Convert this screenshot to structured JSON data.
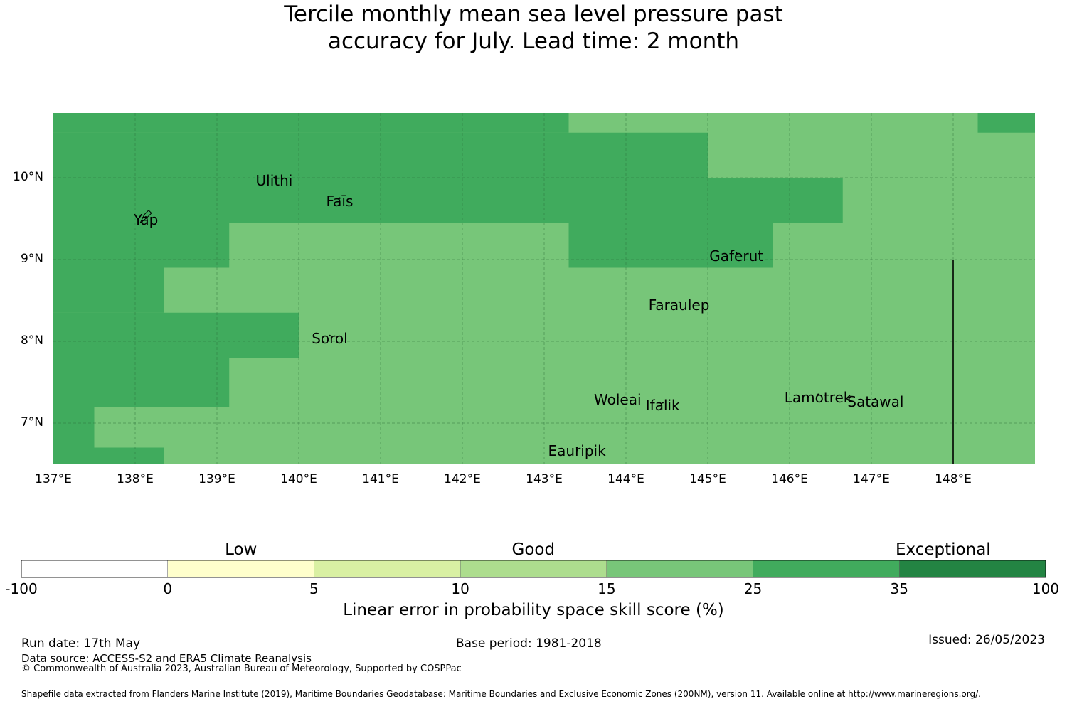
{
  "title": {
    "line1": "Tercile monthly mean sea level pressure past",
    "line2": "accuracy for July. Lead time: 2 month"
  },
  "map": {
    "lon_range": [
      137,
      149
    ],
    "lat_range": [
      6.5,
      10.8
    ],
    "lat_ticks": [
      "10°N",
      "9°N",
      "8°N",
      "7°N"
    ],
    "lon_ticks": [
      "137°E",
      "138°E",
      "139°E",
      "140°E",
      "141°E",
      "142°E",
      "143°E",
      "144°E",
      "145°E",
      "146°E",
      "147°E",
      "148°E"
    ],
    "grid_color": "#2b6e3a",
    "base_color": "#77c679",
    "dark_color": "#40ab5d",
    "dark_regions": [
      {
        "lon": [
          137.0,
          143.3
        ],
        "lat": [
          10.55,
          10.8
        ]
      },
      {
        "lon": [
          148.3,
          149.0
        ],
        "lat": [
          10.55,
          10.8
        ]
      },
      {
        "lon": [
          137.0,
          145.0
        ],
        "lat": [
          9.45,
          10.55
        ]
      },
      {
        "lon": [
          145.0,
          146.65
        ],
        "lat": [
          9.45,
          10.0
        ]
      },
      {
        "lon": [
          137.0,
          139.15
        ],
        "lat": [
          8.9,
          9.45
        ]
      },
      {
        "lon": [
          143.3,
          145.8
        ],
        "lat": [
          8.9,
          9.45
        ]
      },
      {
        "lon": [
          137.0,
          138.35
        ],
        "lat": [
          8.35,
          8.9
        ]
      },
      {
        "lon": [
          137.0,
          140.0
        ],
        "lat": [
          7.8,
          8.35
        ]
      },
      {
        "lon": [
          137.0,
          139.15
        ],
        "lat": [
          7.2,
          7.8
        ]
      },
      {
        "lon": [
          137.0,
          137.5
        ],
        "lat": [
          6.7,
          7.2
        ]
      },
      {
        "lon": [
          137.0,
          138.35
        ],
        "lat": [
          6.5,
          6.7
        ]
      }
    ],
    "boundary_line": {
      "lon": 148.0,
      "lat": [
        6.5,
        9.0
      ]
    },
    "places": [
      {
        "name": "Ulithi",
        "lon": 139.7,
        "lat": 10.0
      },
      {
        "name": "Faīs",
        "lon": 140.5,
        "lat": 9.75
      },
      {
        "name": "Yap",
        "lon": 138.13,
        "lat": 9.52
      },
      {
        "name": "Gaferut",
        "lon": 145.35,
        "lat": 9.08
      },
      {
        "name": "Faraulep",
        "lon": 144.65,
        "lat": 8.48
      },
      {
        "name": "Sorol",
        "lon": 140.38,
        "lat": 8.07
      },
      {
        "name": "Woleai",
        "lon": 143.9,
        "lat": 7.32
      },
      {
        "name": "Ifalik",
        "lon": 144.45,
        "lat": 7.25
      },
      {
        "name": "Lamotrek",
        "lon": 146.35,
        "lat": 7.35
      },
      {
        "name": "Satawal",
        "lon": 147.05,
        "lat": 7.3
      },
      {
        "name": "Eauripik",
        "lon": 143.4,
        "lat": 6.7
      }
    ]
  },
  "legend": {
    "categories": [
      "Low",
      "Good",
      "Exceptional"
    ],
    "boundaries": [
      "-100",
      "0",
      "5",
      "10",
      "15",
      "25",
      "35",
      "100"
    ],
    "colors": [
      "#ffffff",
      "#ffffcc",
      "#d9f0a3",
      "#addd8e",
      "#78c679",
      "#41ab5d",
      "#238443"
    ],
    "title": "Linear error in probability space skill score (%)"
  },
  "footer": {
    "run_date": "Run date: 17th May",
    "base_period": "Base period: 1981-2018",
    "issued": "Issued: 26/05/2023",
    "data_source": "Data source: ACCESS-S2 and ERA5 Climate Reanalysis",
    "copyright": "© Commonwealth of Australia 2023, Australian Bureau of Meteorology, Supported by COSPPac",
    "shapefile": "Shapefile data extracted from Flanders Marine Institute (2019), Maritime Boundaries Geodatabase: Maritime Boundaries and Exclusive Economic Zones (200NM), version 11. Available online at http://www.marineregions.org/."
  }
}
